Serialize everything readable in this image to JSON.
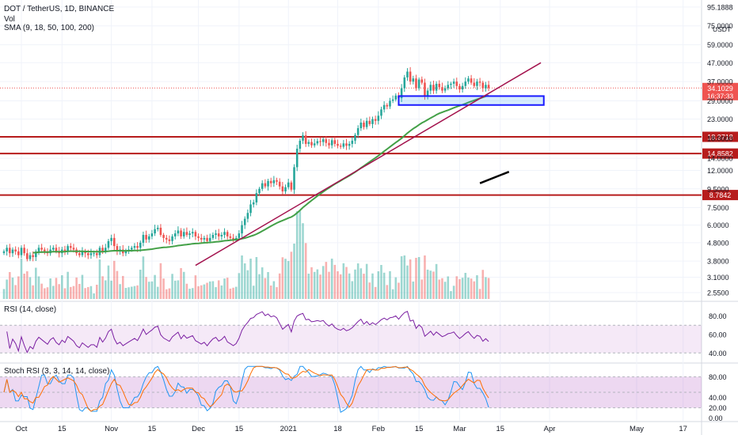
{
  "legend": {
    "symbol": "DOT / TetherUS, 1D, BINANCE",
    "vol": "Vol",
    "sma": "SMA (9, 18, 50, 100, 200)"
  },
  "rsi_title": "RSI (14, close)",
  "stoch_title": "Stoch RSI (3, 3, 14, 14, close)",
  "price_axis": {
    "ticks": [
      "95.1888",
      "75.0000",
      "59.0000",
      "47.0000",
      "37.0000",
      "29.0000",
      "23.0000",
      "18.0000",
      "14.0000",
      "12.0000",
      "9.5000",
      "7.5000",
      "6.0000",
      "4.8000",
      "3.8000",
      "3.1000",
      "2.5500"
    ],
    "top_label": "USDT",
    "current_price": "34.1029",
    "countdown": "16:37:33",
    "levels": [
      "18.3718",
      "14.8582",
      "8.7842"
    ]
  },
  "rsi_axis": [
    "80.00",
    "60.00",
    "40.00"
  ],
  "stoch_axis": [
    "80.00",
    "40.00",
    "20.00",
    "0.00"
  ],
  "time_axis": [
    "Oct",
    "15",
    "Nov",
    "15",
    "Dec",
    "15",
    "2021",
    "18",
    "Feb",
    "15",
    "Mar",
    "15",
    "Apr",
    "May",
    "17"
  ],
  "colors": {
    "up": "#26a69a",
    "down": "#ef5350",
    "level": "#b71c1c",
    "trendline": "#a3124d",
    "sma": "#43a047",
    "rsi": "#7b1fa2",
    "stoch_k": "#2196f3",
    "stoch_d": "#ff6d00",
    "box": "#1a1aff"
  },
  "chart_data": [
    {
      "type": "candlestick",
      "title": "DOT / TetherUS, 1D, BINANCE",
      "y_scale": "log",
      "ylim": [
        2.4,
        100
      ],
      "x_range": [
        "2020-09-25",
        "2021-05-22"
      ],
      "horizontal_levels": [
        18.3718,
        14.8582,
        8.7842
      ],
      "current_price": 34.1029,
      "close_series": {
        "start": "2020-09-25",
        "end": "2021-03-16",
        "values": [
          4.3,
          4.5,
          4.2,
          4.4,
          4.3,
          4.1,
          4.5,
          4.2,
          3.9,
          4.1,
          4.0,
          4.3,
          4.5,
          4.4,
          4.3,
          4.2,
          4.4,
          4.5,
          4.3,
          4.2,
          4.4,
          4.3,
          4.6,
          4.5,
          4.4,
          4.2,
          4.1,
          4.3,
          4.2,
          4.1,
          4.2,
          4.2,
          4.1,
          4.5,
          4.3,
          4.5,
          4.9,
          5.1,
          4.6,
          4.3,
          4.4,
          4.2,
          4.3,
          4.4,
          4.5,
          4.6,
          4.5,
          4.8,
          5.3,
          5.0,
          5.2,
          5.4,
          5.7,
          5.8,
          5.3,
          5.1,
          5.0,
          4.9,
          5.2,
          5.4,
          5.6,
          5.2,
          5.5,
          5.3,
          5.4,
          5.5,
          5.2,
          5.1,
          5.0,
          5.1,
          4.9,
          5.1,
          5.3,
          5.4,
          5.2,
          5.3,
          5.5,
          5.2,
          5.1,
          5.0,
          5.1,
          5.4,
          6.0,
          6.5,
          7.0,
          7.8,
          8.0,
          9.0,
          9.5,
          10.2,
          9.8,
          10.5,
          10.2,
          10.6,
          10.4,
          9.8,
          9.2,
          9.7,
          10.3,
          9.4,
          12.5,
          15.8,
          17.5,
          18.7,
          16.8,
          17.2,
          16.5,
          16.9,
          17.4,
          17.2,
          17.8,
          17.0,
          16.5,
          17.6,
          16.8,
          16.4,
          16.2,
          16.9,
          16.4,
          16.8,
          17.5,
          18.8,
          20.5,
          22.0,
          20.8,
          22.5,
          21.6,
          23.0,
          22.5,
          24.0,
          26.0,
          27.5,
          27.0,
          29.0,
          29.5,
          31.0,
          30.0,
          34.0,
          39.0,
          42.0,
          37.0,
          38.5,
          34.0,
          38.0,
          36.5,
          31.0,
          33.0,
          35.5,
          33.0,
          36.0,
          34.5,
          33.0,
          34.0,
          35.5,
          36.0,
          37.0,
          35.0,
          33.5,
          35.0,
          37.0,
          38.5,
          36.5,
          35.0,
          37.0,
          36.5,
          34.0,
          35.5,
          34.1
        ]
      },
      "annotations": [
        {
          "type": "rectangle",
          "price_range": [
            27.5,
            30.8
          ],
          "date_range": [
            "2021-02-08",
            "2021-03-30"
          ]
        },
        {
          "type": "trendline",
          "from": {
            "date": "2020-11-30",
            "price": 3.6
          },
          "to": {
            "date": "2021-03-29",
            "price": 47.0
          }
        },
        {
          "type": "line",
          "from": {
            "date": "2021-03-08",
            "price": 10.2
          },
          "to": {
            "date": "2021-03-18",
            "price": 11.8
          }
        }
      ]
    },
    {
      "type": "line",
      "title": "RSI (14, close)",
      "ylim": [
        30,
        95
      ],
      "band": [
        40,
        70
      ],
      "last_value": 52
    },
    {
      "type": "line",
      "title": "Stoch RSI (3, 3, 14, 14, close)",
      "ylim": [
        -5,
        105
      ],
      "band": [
        20,
        80
      ],
      "series": [
        {
          "key": "K"
        },
        {
          "key": "D"
        }
      ]
    }
  ]
}
